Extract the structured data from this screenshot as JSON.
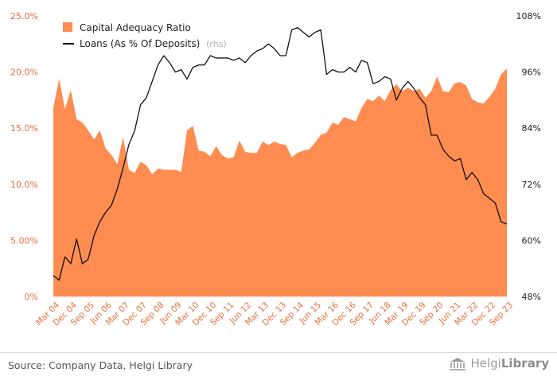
{
  "chart_data": {
    "type": "area",
    "categories": [
      "Mar 04",
      "Jun 04",
      "Sep 04",
      "Dec 04",
      "Mar 05",
      "Jun 05",
      "Sep 05",
      "Dec 05",
      "Mar 06",
      "Jun 06",
      "Sep 06",
      "Dec 06",
      "Mar 07",
      "Jun 07",
      "Sep 07",
      "Dec 07",
      "Mar 08",
      "Jun 08",
      "Sep 08",
      "Dec 08",
      "Mar 09",
      "Jun 09",
      "Sep 09",
      "Dec 09",
      "Mar 10",
      "Jun 10",
      "Sep 10",
      "Dec 10",
      "Mar 11",
      "Jun 11",
      "Sep 11",
      "Dec 11",
      "Mar 12",
      "Jun 12",
      "Sep 12",
      "Dec 12",
      "Mar 13",
      "Jun 13",
      "Sep 13",
      "Dec 13",
      "Mar 14",
      "Jun 14",
      "Sep 14",
      "Dec 14",
      "Mar 15",
      "Jun 15",
      "Sep 15",
      "Dec 15",
      "Mar 16",
      "Jun 16",
      "Sep 16",
      "Dec 16",
      "Mar 17",
      "Jun 17",
      "Sep 17",
      "Dec 17",
      "Mar 18",
      "Jun 18",
      "Sep 18",
      "Dec 18",
      "Mar 19",
      "Jun 19",
      "Sep 19",
      "Dec 19",
      "Mar 20",
      "Jun 20",
      "Sep 20",
      "Dec 20",
      "Mar 21",
      "Jun 21",
      "Sep 21",
      "Dec 21",
      "Mar 22",
      "Jun 22",
      "Sep 22",
      "Dec 22",
      "Mar 23",
      "Jun 23",
      "Sep 23"
    ],
    "x_tick_labels": [
      "Mar 04",
      "Dec 04",
      "Sep 05",
      "Jun 06",
      "Mar 07",
      "Dec 07",
      "Sep 08",
      "Jun 09",
      "Mar 10",
      "Dec 10",
      "Sep 11",
      "Jun 12",
      "Mar 13",
      "Dec 13",
      "Sep 14",
      "Jun 15",
      "Mar 16",
      "Dec 16",
      "Sep 17",
      "Jun 18",
      "Mar 19",
      "Dec 19",
      "Sep 20",
      "Jun 21",
      "Mar 22",
      "Dec 22",
      "Sep 23"
    ],
    "y_left_ticks": [
      "0%",
      "5.00%",
      "10.0%",
      "15.0%",
      "20.0%",
      "25.0%"
    ],
    "y_right_ticks": [
      "48%",
      "60%",
      "72%",
      "84%",
      "96%",
      "108%"
    ],
    "ylim_left": [
      0,
      25
    ],
    "ylim_right": [
      48,
      108
    ],
    "grid": false,
    "legend_position": "top-left",
    "series": [
      {
        "name": "Capital Adequacy Ratio",
        "axis": "left",
        "chart_type": "area",
        "color": "#ff8c50",
        "values": [
          16.8,
          19.4,
          16.7,
          18.4,
          15.8,
          15.5,
          14.8,
          14.0,
          14.8,
          13.2,
          12.6,
          11.8,
          14.2,
          11.3,
          11.0,
          12.0,
          11.7,
          10.9,
          11.4,
          11.3,
          11.3,
          11.3,
          11.1,
          14.8,
          15.2,
          13.0,
          12.9,
          12.5,
          13.4,
          12.6,
          12.3,
          12.4,
          13.9,
          12.9,
          12.8,
          12.8,
          13.8,
          13.5,
          13.8,
          13.6,
          13.5,
          12.4,
          12.8,
          13.0,
          13.1,
          13.7,
          14.4,
          14.6,
          15.5,
          15.3,
          16.0,
          15.8,
          15.6,
          16.8,
          17.6,
          17.4,
          17.9,
          17.4,
          18.4,
          18.9,
          18.3,
          18.6,
          18.3,
          18.5,
          17.7,
          18.3,
          19.6,
          18.3,
          18.2,
          19.0,
          19.1,
          18.8,
          17.6,
          17.3,
          17.2,
          17.8,
          18.5,
          19.8,
          20.3
        ]
      },
      {
        "name": "Loans (As % Of Deposits)",
        "axis": "right",
        "chart_type": "line",
        "color": "#111111",
        "values": [
          52.5,
          51.5,
          56.5,
          55.0,
          60.3,
          55.0,
          56.0,
          61.0,
          64.0,
          66.0,
          67.5,
          71.0,
          75.5,
          80.5,
          83.5,
          89.0,
          90.5,
          94.0,
          97.5,
          99.5,
          98.0,
          96.0,
          96.5,
          94.5,
          97.0,
          97.5,
          97.5,
          99.5,
          99.0,
          99.0,
          99.0,
          98.5,
          99.0,
          98.0,
          99.5,
          100.5,
          101.0,
          102.0,
          101.0,
          99.5,
          99.5,
          105.0,
          105.5,
          104.5,
          103.5,
          104.5,
          105.0,
          95.5,
          96.5,
          96.0,
          96.0,
          97.0,
          96.0,
          98.5,
          98.0,
          93.5,
          94.0,
          95.0,
          94.5,
          90.0,
          92.5,
          94.0,
          92.5,
          90.5,
          89.0,
          82.5,
          82.5,
          79.5,
          78.0,
          77.0,
          77.5,
          73.0,
          74.5,
          73.0,
          70.0,
          69.0,
          68.0,
          64.0,
          63.5
        ]
      }
    ],
    "legend_sub_label": "(rhs)"
  },
  "footer": {
    "source": "Source: Company Data, Helgi Library",
    "brand_regular": "Helgi",
    "brand_bold": "Library"
  },
  "colors": {
    "area_fill": "#ff8c50",
    "tick_left": "#e8703a",
    "line": "#111111"
  }
}
